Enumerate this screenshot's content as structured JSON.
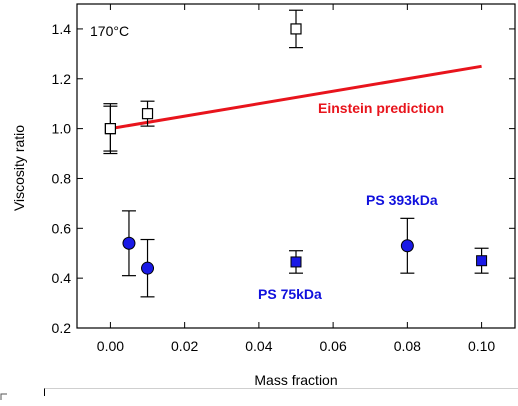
{
  "chart_data": {
    "type": "scatter",
    "xlabel": "Mass fraction",
    "ylabel": "Viscosity ratio",
    "xlim": [
      -0.009,
      0.109
    ],
    "ylim": [
      0.2,
      1.5
    ],
    "xticks": [
      "0.00",
      "0.02",
      "0.04",
      "0.06",
      "0.08",
      "0.10"
    ],
    "yticks": [
      "0.2",
      "0.4",
      "0.6",
      "0.8",
      "1.0",
      "1.2",
      "1.4"
    ],
    "grid": false,
    "annotations": {
      "temperature": "170°C",
      "einstein": "Einstein prediction",
      "ps393": "PS 393kDa",
      "ps75": "PS 75kDa"
    },
    "colors": {
      "einstein": "#e8141c",
      "ps_labels": "#1010dd",
      "circle_fill": "#1a1ae6",
      "square_fill": "#1a1ae6",
      "open_square_fill": "#ffffff"
    },
    "series": [
      {
        "marker": "open-square",
        "points": [
          {
            "x": 0.0,
            "y": 1.0,
            "err": 0.1
          },
          {
            "x": 0.0,
            "y": 1.0,
            "err": 0.09
          },
          {
            "x": 0.01,
            "y": 1.06,
            "err": 0.05
          },
          {
            "x": 0.05,
            "y": 1.4,
            "err": 0.075
          }
        ]
      },
      {
        "marker": "filled-circle",
        "points": [
          {
            "x": 0.005,
            "y": 0.54,
            "err": 0.13
          },
          {
            "x": 0.01,
            "y": 0.44,
            "err": 0.115
          },
          {
            "x": 0.08,
            "y": 0.53,
            "err": 0.11
          }
        ]
      },
      {
        "marker": "filled-square",
        "points": [
          {
            "x": 0.05,
            "y": 0.465,
            "err": 0.045
          },
          {
            "x": 0.1,
            "y": 0.47,
            "err": 0.05
          }
        ]
      }
    ],
    "line": {
      "marker": "line",
      "x": [
        0.0,
        0.1
      ],
      "y": [
        1.0,
        1.25
      ]
    }
  }
}
